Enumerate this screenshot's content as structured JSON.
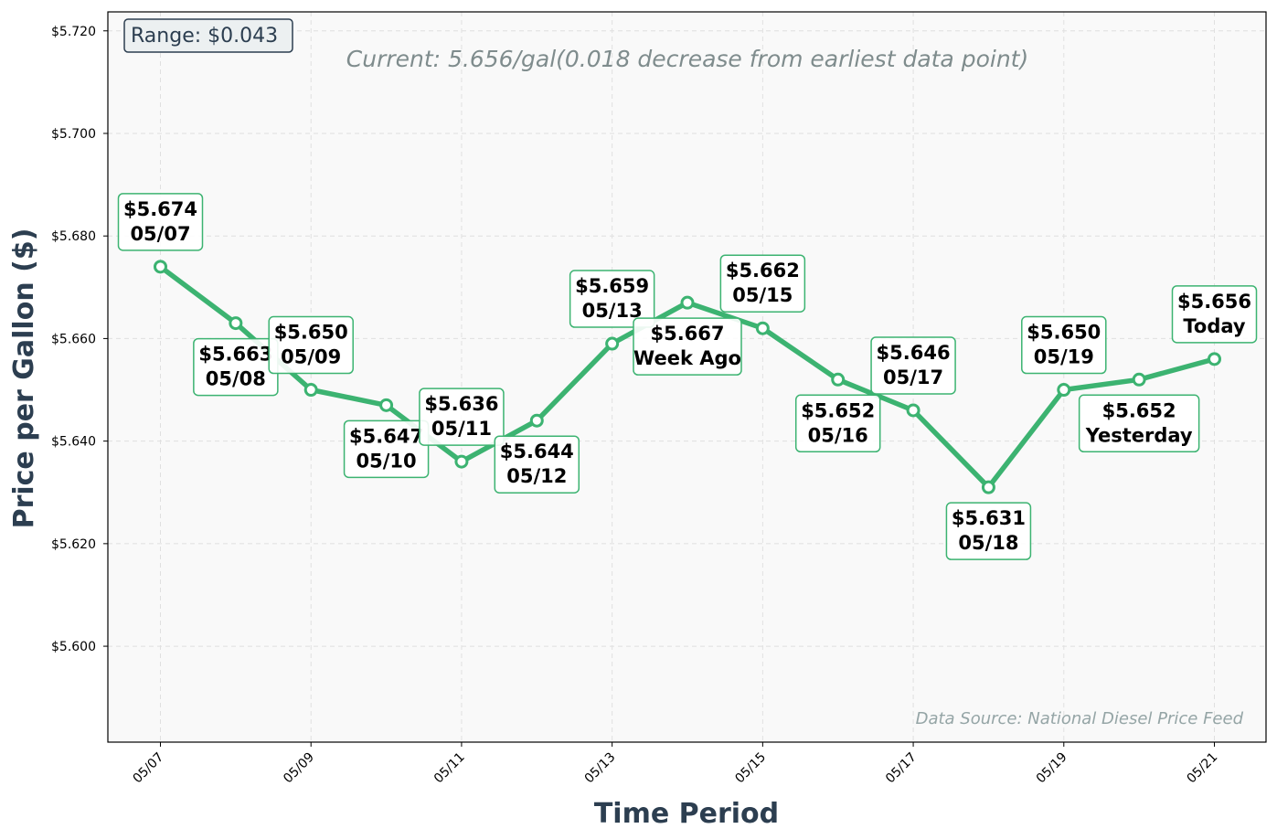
{
  "chart_data": {
    "type": "line",
    "subtitle": "Current: 5.656/gal(0.018 decrease from earliest data point)",
    "xlabel": "Time Period",
    "ylabel": "Price per Gallon ($)",
    "ylim": [
      5.5813,
      5.7237
    ],
    "grid": true,
    "x": [
      "05/07",
      "05/08",
      "05/09",
      "05/10",
      "05/11",
      "05/12",
      "05/13",
      "05/14",
      "05/15",
      "05/16",
      "05/17",
      "05/18",
      "05/19",
      "05/20",
      "05/21"
    ],
    "values": [
      5.674,
      5.663,
      5.65,
      5.647,
      5.636,
      5.644,
      5.659,
      5.667,
      5.662,
      5.652,
      5.646,
      5.631,
      5.65,
      5.652,
      5.656
    ],
    "x_tick_labels": [
      "05/07",
      "05/09",
      "05/11",
      "05/13",
      "05/15",
      "05/17",
      "05/19",
      "05/21"
    ],
    "y_ticks": [
      5.6,
      5.62,
      5.64,
      5.66,
      5.68,
      5.7,
      5.72
    ],
    "y_tick_labels": [
      "$5.600",
      "$5.620",
      "$5.640",
      "$5.660",
      "$5.680",
      "$5.700",
      "$5.720"
    ],
    "annotations": [
      {
        "price": "$5.674",
        "label": "05/07",
        "placement": "above"
      },
      {
        "price": "$5.663",
        "label": "05/08",
        "placement": "below"
      },
      {
        "price": "$5.650",
        "label": "05/09",
        "placement": "above"
      },
      {
        "price": "$5.647",
        "label": "05/10",
        "placement": "below"
      },
      {
        "price": "$5.636",
        "label": "05/11",
        "placement": "above"
      },
      {
        "price": "$5.644",
        "label": "05/12",
        "placement": "below"
      },
      {
        "price": "$5.659",
        "label": "05/13",
        "placement": "above"
      },
      {
        "price": "$5.667",
        "label": "Week Ago",
        "placement": "below"
      },
      {
        "price": "$5.662",
        "label": "05/15",
        "placement": "above"
      },
      {
        "price": "$5.652",
        "label": "05/16",
        "placement": "below"
      },
      {
        "price": "$5.646",
        "label": "05/17",
        "placement": "above"
      },
      {
        "price": "$5.631",
        "label": "05/18",
        "placement": "below"
      },
      {
        "price": "$5.650",
        "label": "05/19",
        "placement": "above"
      },
      {
        "price": "$5.652",
        "label": "Yesterday",
        "placement": "below"
      },
      {
        "price": "$5.656",
        "label": "Today",
        "placement": "above"
      }
    ],
    "range_box": "Range: $0.043",
    "source_note": "Data Source: National Diesel Price Feed",
    "colors": {
      "line": "#3cb371",
      "plot_background": "#f9f9f9",
      "axis_title": "#2c3e50",
      "subtitle": "#7f8c8d",
      "source_note": "#95a5a6",
      "range_box_fill": "#ecf0f1",
      "grid": "#e0e0e0"
    }
  }
}
